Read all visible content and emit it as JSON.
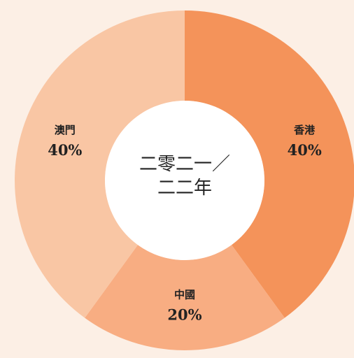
{
  "chart_data": {
    "type": "donut",
    "title": "二零二一／二二年",
    "categories": [
      "香港",
      "中國",
      "澳門"
    ],
    "values": [
      40,
      20,
      40
    ],
    "value_labels": [
      "40%",
      "20%",
      "40%"
    ],
    "colors": [
      "#f4935a",
      "#f8ad82",
      "#f9c6a4"
    ]
  }
}
